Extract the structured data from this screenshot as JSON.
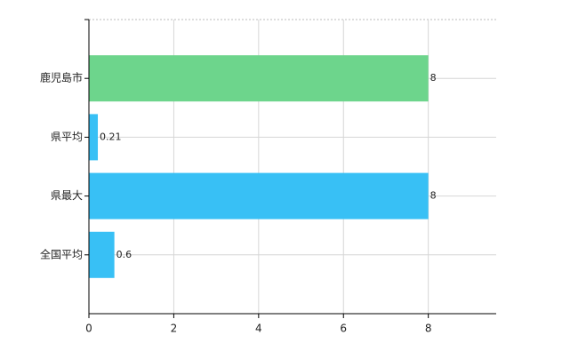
{
  "chart_data": {
    "type": "barh",
    "categories": [
      "鹿児島市",
      "県平均",
      "県最大",
      "全国平均"
    ],
    "values": [
      8,
      0.21,
      8,
      0.6
    ],
    "colors": [
      "#6dd58c",
      "#38c0f5",
      "#38c0f5",
      "#38c0f5"
    ],
    "xlim": [
      0,
      9.6
    ],
    "xticks": [
      0,
      2,
      4,
      6,
      8
    ],
    "grid": true
  }
}
